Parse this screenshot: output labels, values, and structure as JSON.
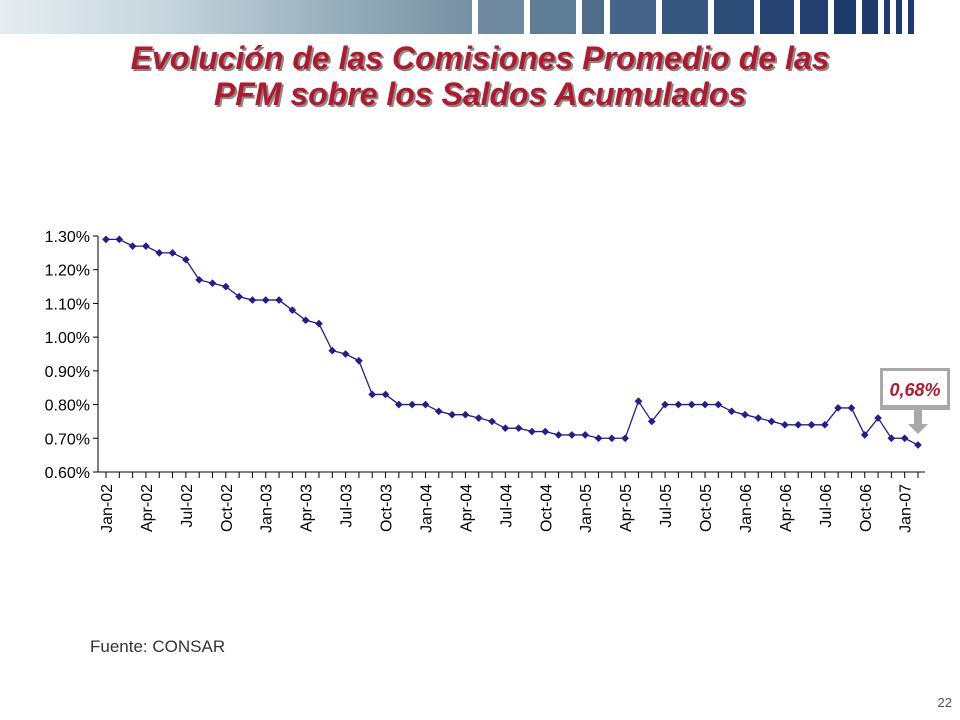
{
  "slide": {
    "title_line1": "Evolución de las Comisiones Promedio de las",
    "title_line2": "PFM sobre los Saldos Acumulados",
    "source": "Fuente: CONSAR",
    "page_number": "22"
  },
  "colors": {
    "title": "#b3192c",
    "series": "#1f1f8f",
    "callout_box": "#a9a9a9",
    "callout_text": "#b3192c",
    "banner_dark": "#1e3a6d"
  },
  "chart_data": {
    "type": "line",
    "title": "",
    "xlabel": "",
    "ylabel": "",
    "ylim": [
      0.006,
      0.013
    ],
    "yticks": [
      0.006,
      0.007,
      0.008,
      0.009,
      0.01,
      0.011,
      0.012,
      0.013
    ],
    "ytick_labels": [
      "0.60%",
      "0.70%",
      "0.80%",
      "0.90%",
      "1.00%",
      "1.10%",
      "1.20%",
      "1.30%"
    ],
    "x": [
      "Jan-02",
      "Feb-02",
      "Mar-02",
      "Apr-02",
      "May-02",
      "Jun-02",
      "Jul-02",
      "Aug-02",
      "Sep-02",
      "Oct-02",
      "Nov-02",
      "Dec-02",
      "Jan-03",
      "Feb-03",
      "Mar-03",
      "Apr-03",
      "May-03",
      "Jun-03",
      "Jul-03",
      "Aug-03",
      "Sep-03",
      "Oct-03",
      "Nov-03",
      "Dec-03",
      "Jan-04",
      "Feb-04",
      "Mar-04",
      "Apr-04",
      "May-04",
      "Jun-04",
      "Jul-04",
      "Aug-04",
      "Sep-04",
      "Oct-04",
      "Nov-04",
      "Dec-04",
      "Jan-05",
      "Feb-05",
      "Mar-05",
      "Apr-05",
      "May-05",
      "Jun-05",
      "Jul-05",
      "Aug-05",
      "Sep-05",
      "Oct-05",
      "Nov-05",
      "Dec-05",
      "Jan-06",
      "Feb-06",
      "Mar-06",
      "Apr-06",
      "May-06",
      "Jun-06",
      "Jul-06",
      "Aug-06",
      "Sep-06",
      "Oct-06",
      "Nov-06",
      "Dec-06",
      "Jan-07",
      "Feb-07"
    ],
    "xtick_labels": [
      "Jan-02",
      "Apr-02",
      "Jul-02",
      "Oct-02",
      "Jan-03",
      "Apr-03",
      "Jul-03",
      "Oct-03",
      "Jan-04",
      "Apr-04",
      "Jul-04",
      "Oct-04",
      "Jan-05",
      "Apr-05",
      "Jul-05",
      "Oct-05",
      "Jan-06",
      "Apr-06",
      "Jul-06",
      "Oct-06",
      "Jan-07"
    ],
    "series": [
      {
        "values": [
          0.0129,
          0.0129,
          0.0127,
          0.0127,
          0.0125,
          0.0125,
          0.0123,
          0.0117,
          0.0116,
          0.0115,
          0.0112,
          0.0111,
          0.0111,
          0.0111,
          0.0108,
          0.0105,
          0.0104,
          0.0096,
          0.0095,
          0.0093,
          0.0083,
          0.0083,
          0.008,
          0.008,
          0.008,
          0.0078,
          0.0077,
          0.0077,
          0.0076,
          0.0075,
          0.0073,
          0.0073,
          0.0072,
          0.0072,
          0.0071,
          0.0071,
          0.0071,
          0.007,
          0.007,
          0.007,
          0.0081,
          0.0075,
          0.008,
          0.008,
          0.008,
          0.008,
          0.008,
          0.0078,
          0.0077,
          0.0076,
          0.0075,
          0.0074,
          0.0074,
          0.0074,
          0.0074,
          0.0079,
          0.0079,
          0.0071,
          0.0076,
          0.007,
          0.007,
          0.0068
        ]
      }
    ],
    "annotation": {
      "text": "0,68%",
      "x": "Feb-07",
      "y": 0.0068
    },
    "grid": false,
    "legend": "none"
  }
}
